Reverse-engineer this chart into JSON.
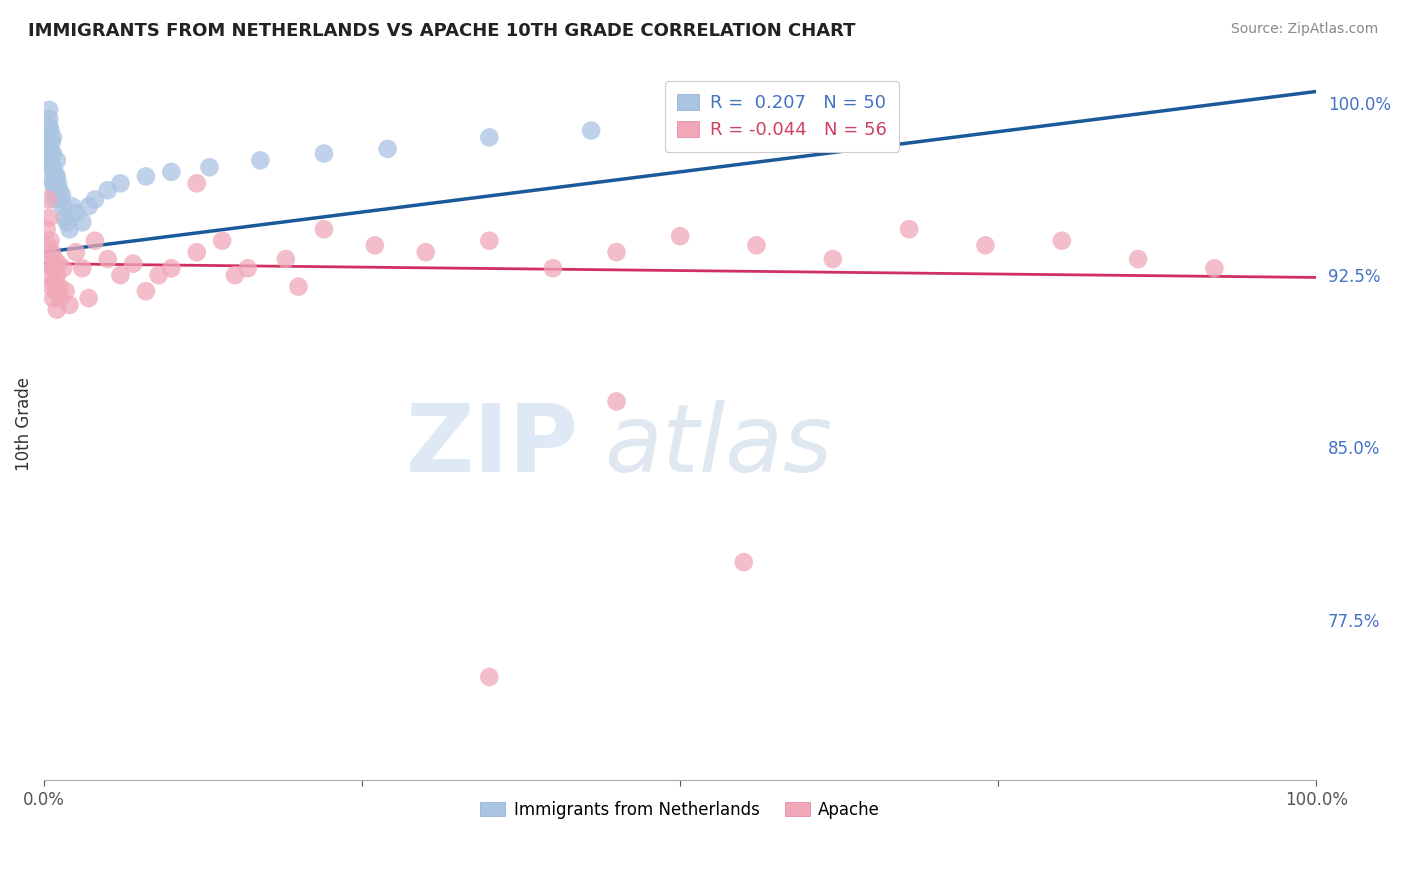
{
  "title": "IMMIGRANTS FROM NETHERLANDS VS APACHE 10TH GRADE CORRELATION CHART",
  "source": "Source: ZipAtlas.com",
  "ylabel": "10th Grade",
  "ylim": [
    0.705,
    1.015
  ],
  "xlim": [
    0.0,
    1.0
  ],
  "yticks": [
    0.775,
    0.85,
    0.925,
    1.0
  ],
  "ytick_labels": [
    "77.5%",
    "85.0%",
    "92.5%",
    "100.0%"
  ],
  "blue_R": 0.207,
  "blue_N": 50,
  "pink_R": -0.044,
  "pink_N": 56,
  "blue_color": "#aac4e2",
  "blue_edge_color": "#aac4e2",
  "blue_line_color": "#1a5a9a",
  "pink_color": "#f0a8b8",
  "pink_edge_color": "#f0a8b8",
  "pink_line_color": "#d03060",
  "legend_blue_label": "Immigrants from Netherlands",
  "legend_pink_label": "Apache",
  "watermark_zip": "ZIP",
  "watermark_atlas": "atlas",
  "watermark_color_zip": "#c5d8ee",
  "watermark_color_atlas": "#b8cce0",
  "blue_x": [
    0.002,
    0.003,
    0.003,
    0.004,
    0.004,
    0.004,
    0.005,
    0.005,
    0.005,
    0.006,
    0.006,
    0.006,
    0.006,
    0.007,
    0.007,
    0.007,
    0.007,
    0.008,
    0.008,
    0.008,
    0.009,
    0.009,
    0.01,
    0.01,
    0.01,
    0.011,
    0.012,
    0.013,
    0.014,
    0.015,
    0.016,
    0.018,
    0.02,
    0.022,
    0.025,
    0.03,
    0.035,
    0.04,
    0.05,
    0.06,
    0.08,
    0.1,
    0.13,
    0.17,
    0.22,
    0.27,
    0.35,
    0.43,
    0.52,
    0.63
  ],
  "blue_y": [
    0.975,
    0.98,
    0.985,
    0.99,
    0.993,
    0.997,
    0.988,
    0.984,
    0.979,
    0.983,
    0.977,
    0.972,
    0.967,
    0.985,
    0.978,
    0.972,
    0.965,
    0.97,
    0.963,
    0.958,
    0.968,
    0.961,
    0.975,
    0.968,
    0.96,
    0.965,
    0.962,
    0.958,
    0.96,
    0.955,
    0.95,
    0.948,
    0.945,
    0.955,
    0.952,
    0.948,
    0.955,
    0.958,
    0.962,
    0.965,
    0.968,
    0.97,
    0.972,
    0.975,
    0.978,
    0.98,
    0.985,
    0.988,
    0.992,
    0.995
  ],
  "pink_x": [
    0.002,
    0.003,
    0.003,
    0.004,
    0.004,
    0.005,
    0.005,
    0.006,
    0.006,
    0.007,
    0.007,
    0.008,
    0.008,
    0.009,
    0.01,
    0.01,
    0.011,
    0.012,
    0.013,
    0.015,
    0.017,
    0.02,
    0.025,
    0.03,
    0.035,
    0.04,
    0.05,
    0.06,
    0.07,
    0.08,
    0.09,
    0.1,
    0.12,
    0.14,
    0.16,
    0.19,
    0.22,
    0.26,
    0.3,
    0.35,
    0.4,
    0.45,
    0.5,
    0.56,
    0.62,
    0.68,
    0.74,
    0.8,
    0.86,
    0.92,
    0.55,
    0.45,
    0.2,
    0.15,
    0.12,
    0.35
  ],
  "pink_y": [
    0.945,
    0.958,
    0.938,
    0.95,
    0.93,
    0.925,
    0.94,
    0.935,
    0.92,
    0.928,
    0.915,
    0.932,
    0.922,
    0.918,
    0.925,
    0.91,
    0.93,
    0.92,
    0.915,
    0.928,
    0.918,
    0.912,
    0.935,
    0.928,
    0.915,
    0.94,
    0.932,
    0.925,
    0.93,
    0.918,
    0.925,
    0.928,
    0.935,
    0.94,
    0.928,
    0.932,
    0.945,
    0.938,
    0.935,
    0.94,
    0.928,
    0.935,
    0.942,
    0.938,
    0.932,
    0.945,
    0.938,
    0.94,
    0.932,
    0.928,
    0.8,
    0.87,
    0.92,
    0.925,
    0.965,
    0.75
  ]
}
